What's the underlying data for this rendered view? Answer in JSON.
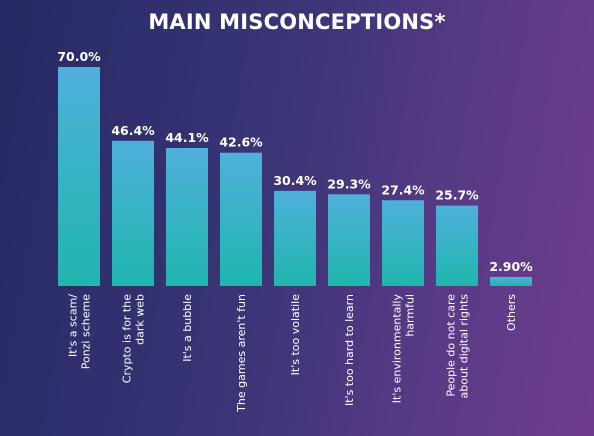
{
  "chart_data": {
    "type": "bar",
    "title": "MAIN MISCONCEPTIONS*",
    "categories": [
      [
        "It's a scam/",
        "Ponzi scheme"
      ],
      [
        "Crypto is for the",
        "dark web"
      ],
      [
        "It's a bubble"
      ],
      [
        "The games aren't fun"
      ],
      [
        "It's too volatile"
      ],
      [
        "It's too hard to learn"
      ],
      [
        "It's environmentally",
        "harmful"
      ],
      [
        "People do not care",
        "about digital rights"
      ],
      [
        "Others"
      ]
    ],
    "values": [
      70.0,
      46.4,
      44.1,
      42.6,
      30.4,
      29.3,
      27.4,
      25.7,
      2.9
    ],
    "value_labels": [
      "70.0%",
      "46.4%",
      "44.1%",
      "42.6%",
      "30.4%",
      "29.3%",
      "27.4%",
      "25.7%",
      "2.90%"
    ],
    "ylim": [
      0,
      70
    ],
    "grid": true,
    "colors": {
      "bar_top": "#4fb0dc",
      "bar_bottom": "#1fb6ac",
      "grid_left": "#4a78d6",
      "grid_right": "#b44fc0"
    }
  }
}
